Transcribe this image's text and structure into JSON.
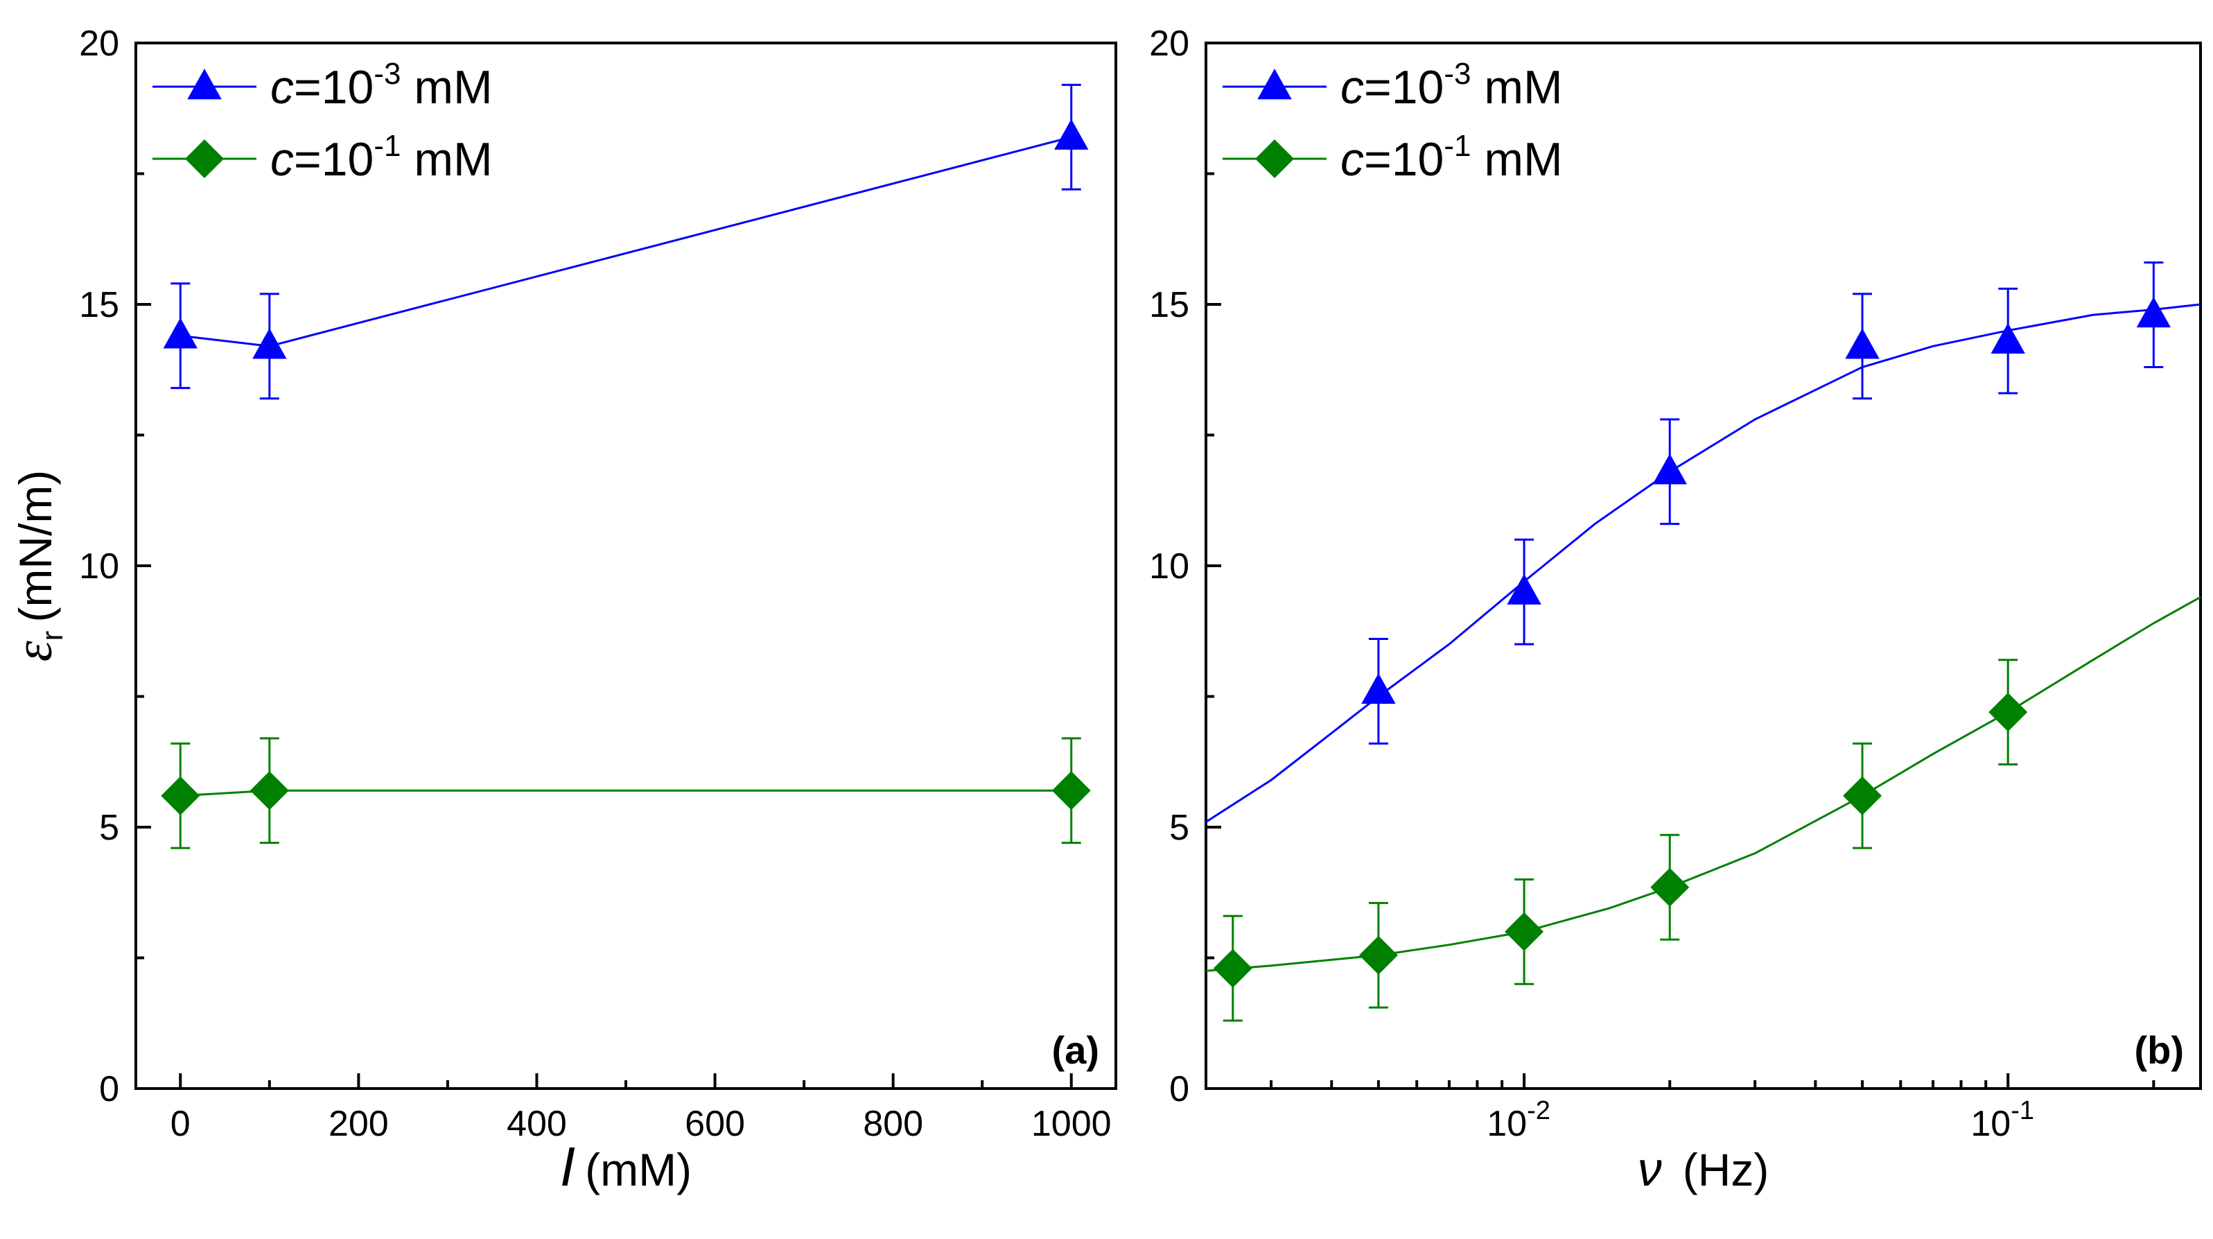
{
  "chart_data": [
    {
      "type": "line",
      "panel_label": "(a)",
      "xlabel": {
        "symbol": "I",
        "unit": "(mM)"
      },
      "ylabel": {
        "symbol": "ε",
        "sub": "r",
        "unit": "(mN/m)"
      },
      "xscale": "linear",
      "xlim": [
        -50,
        1050
      ],
      "ylim": [
        0,
        20
      ],
      "xticks": [
        0,
        200,
        400,
        600,
        800,
        1000
      ],
      "xtick_labels": [
        "0",
        "200",
        "400",
        "600",
        "800",
        "1000"
      ],
      "yticks": [
        0,
        5,
        10,
        15,
        20
      ],
      "ytick_labels": [
        "0",
        "5",
        "10",
        "15",
        "20"
      ],
      "legend_position": "top-left",
      "series": [
        {
          "name": "c=10-3 mM",
          "legend": {
            "prefix": "c",
            "mid": "=10",
            "exp": "-3",
            "suffix": " mM"
          },
          "color": "#0000ff",
          "marker": "triangle",
          "x": [
            0,
            100,
            1000
          ],
          "y": [
            14.4,
            14.2,
            18.2
          ],
          "err": [
            1.0,
            1.0,
            1.0
          ]
        },
        {
          "name": "c=10-1 mM",
          "legend": {
            "prefix": "c",
            "mid": "=10",
            "exp": "-1",
            "suffix": " mM"
          },
          "color": "#008000",
          "marker": "diamond",
          "x": [
            0,
            100,
            1000
          ],
          "y": [
            5.6,
            5.7,
            5.7
          ],
          "err": [
            1.0,
            1.0,
            1.0
          ]
        }
      ]
    },
    {
      "type": "scatter",
      "panel_label": "(b)",
      "xlabel": {
        "symbol": "ν",
        "unit": "(Hz)"
      },
      "xscale": "log",
      "xlim": [
        0.0022,
        0.25
      ],
      "ylim": [
        0,
        20
      ],
      "xticks_major": [
        0.01,
        0.1
      ],
      "xtick_labels": [
        {
          "base": "10",
          "exp": "-2"
        },
        {
          "base": "10",
          "exp": "-1"
        }
      ],
      "yticks": [
        0,
        5,
        10,
        15,
        20
      ],
      "ytick_labels": [
        "0",
        "5",
        "10",
        "15",
        "20"
      ],
      "legend_position": "top-left",
      "series": [
        {
          "name": "c=10-3 mM",
          "legend": {
            "prefix": "c",
            "mid": "=10",
            "exp": "-3",
            "suffix": " mM"
          },
          "color": "#0000ff",
          "marker": "triangle",
          "x": [
            0.005,
            0.01,
            0.02,
            0.05,
            0.1,
            0.2
          ],
          "y": [
            7.6,
            9.5,
            11.8,
            14.2,
            14.3,
            14.8
          ],
          "err": [
            1.0,
            1.0,
            1.0,
            1.0,
            1.0,
            1.0
          ],
          "fit_curve": {
            "x": [
              0.0022,
              0.003,
              0.004,
              0.005,
              0.007,
              0.01,
              0.014,
              0.02,
              0.03,
              0.05,
              0.07,
              0.1,
              0.15,
              0.2,
              0.25
            ],
            "y": [
              5.1,
              5.9,
              6.8,
              7.5,
              8.5,
              9.7,
              10.8,
              11.8,
              12.8,
              13.8,
              14.2,
              14.5,
              14.8,
              14.9,
              15.0
            ]
          }
        },
        {
          "name": "c=10-1 mM",
          "legend": {
            "prefix": "c",
            "mid": "=10",
            "exp": "-1",
            "suffix": " mM"
          },
          "color": "#008000",
          "marker": "diamond",
          "x": [
            0.0025,
            0.005,
            0.01,
            0.02,
            0.05,
            0.1
          ],
          "y": [
            2.3,
            2.55,
            3.0,
            3.85,
            5.6,
            7.2
          ],
          "err": [
            1.0,
            1.0,
            1.0,
            1.0,
            1.0,
            1.0
          ],
          "fit_curve": {
            "x": [
              0.0022,
              0.003,
              0.005,
              0.007,
              0.01,
              0.015,
              0.02,
              0.03,
              0.05,
              0.07,
              0.1,
              0.15,
              0.2,
              0.25
            ],
            "y": [
              2.25,
              2.35,
              2.55,
              2.75,
              3.0,
              3.45,
              3.85,
              4.5,
              5.6,
              6.4,
              7.2,
              8.2,
              8.9,
              9.4
            ]
          }
        }
      ]
    }
  ]
}
